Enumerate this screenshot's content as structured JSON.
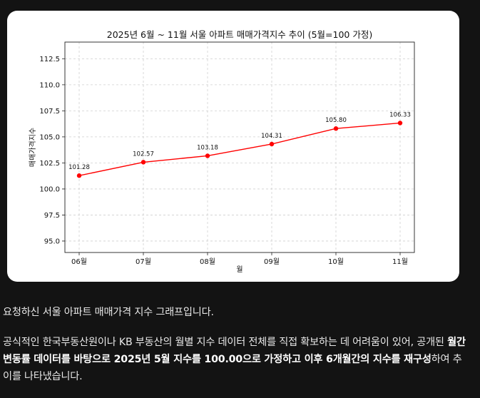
{
  "chart_data": {
    "type": "line",
    "title": "2025년 6월 ~ 11월 서울 아파트 매매가격지수 추이 (5월=100 가정)",
    "xlabel": "월",
    "ylabel": "매매가격지수",
    "categories": [
      "06월",
      "07월",
      "08월",
      "09월",
      "10월",
      "11월"
    ],
    "values": [
      101.28,
      102.57,
      103.18,
      104.31,
      105.8,
      106.33
    ],
    "value_labels": [
      "101.28",
      "102.57",
      "103.18",
      "104.31",
      "105.80",
      "106.33"
    ],
    "ylim": [
      93.9,
      114.1
    ],
    "yticks": [
      95.0,
      97.5,
      100.0,
      102.5,
      105.0,
      107.5,
      110.0,
      112.5
    ],
    "ytick_labels": [
      "95.0",
      "97.5",
      "100.0",
      "102.5",
      "105.0",
      "107.5",
      "110.0",
      "112.5"
    ],
    "grid": true,
    "line_color": "#ff0000"
  },
  "message": {
    "p1": "요청하신 서울 아파트 매매가격 지수 그래프입니다.",
    "p2_a": "공식적인 한국부동산원이나 KB 부동산의 월별 지수 데이터 전체를 직접 확보하는 데 어려움이 있어, 공개된 ",
    "p2_b": "월간 변동률 데이터를 바탕으로 2025년 5월 지수를 100.00으로 가정하고 이후 6개월간의 지수를 재구성",
    "p2_c": "하여 추이를 나타냈습니다."
  }
}
